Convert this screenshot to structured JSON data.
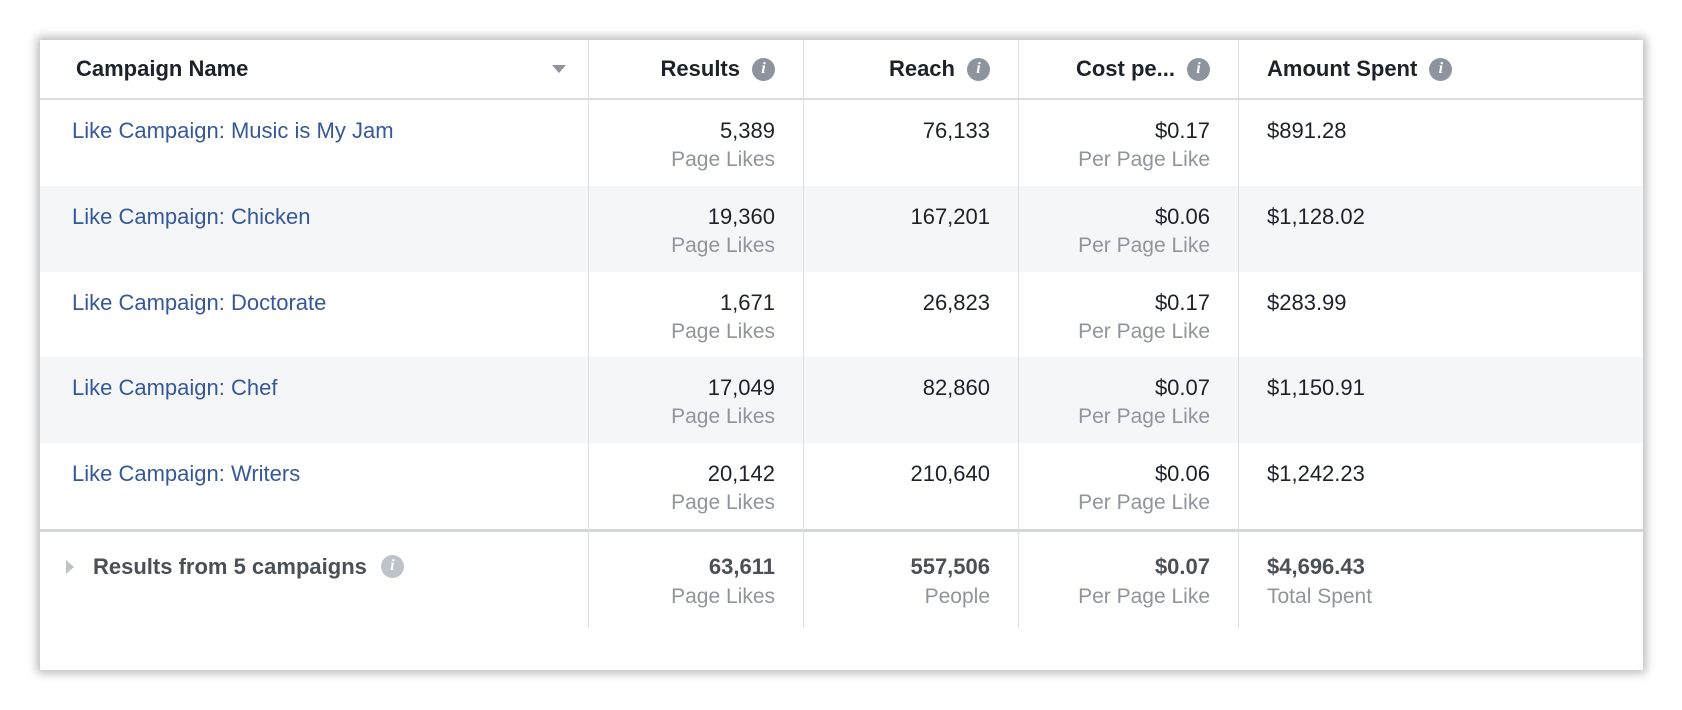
{
  "columns": {
    "campaign_name": "Campaign Name",
    "results": "Results",
    "reach": "Reach",
    "cost": "Cost pe...",
    "amount_spent": "Amount Spent"
  },
  "icons": {
    "info": "info-icon",
    "sort": "sort-caret-icon",
    "expand": "expand-triangle-icon"
  },
  "rows": [
    {
      "name": "Like Campaign: Music is My Jam",
      "results": "5,389",
      "results_unit": "Page Likes",
      "reach": "76,133",
      "cost": "$0.17",
      "cost_unit": "Per Page Like",
      "spent": "$891.28"
    },
    {
      "name": "Like Campaign: Chicken",
      "results": "19,360",
      "results_unit": "Page Likes",
      "reach": "167,201",
      "cost": "$0.06",
      "cost_unit": "Per Page Like",
      "spent": "$1,128.02"
    },
    {
      "name": "Like Campaign: Doctorate",
      "results": "1,671",
      "results_unit": "Page Likes",
      "reach": "26,823",
      "cost": "$0.17",
      "cost_unit": "Per Page Like",
      "spent": "$283.99"
    },
    {
      "name": "Like Campaign: Chef",
      "results": "17,049",
      "results_unit": "Page Likes",
      "reach": "82,860",
      "cost": "$0.07",
      "cost_unit": "Per Page Like",
      "spent": "$1,150.91"
    },
    {
      "name": "Like Campaign: Writers",
      "results": "20,142",
      "results_unit": "Page Likes",
      "reach": "210,640",
      "cost": "$0.06",
      "cost_unit": "Per Page Like",
      "spent": "$1,242.23"
    }
  ],
  "summary": {
    "label": "Results from 5 campaigns",
    "results": "63,611",
    "results_unit": "Page Likes",
    "reach": "557,506",
    "reach_unit": "People",
    "cost": "$0.07",
    "cost_unit": "Per Page Like",
    "spent": "$4,696.43",
    "spent_unit": "Total Spent"
  },
  "colors": {
    "link": "#365899",
    "text": "#1d2129",
    "muted": "#90949c",
    "row_shade": "#f5f6f8",
    "icon": "#8d949e"
  }
}
